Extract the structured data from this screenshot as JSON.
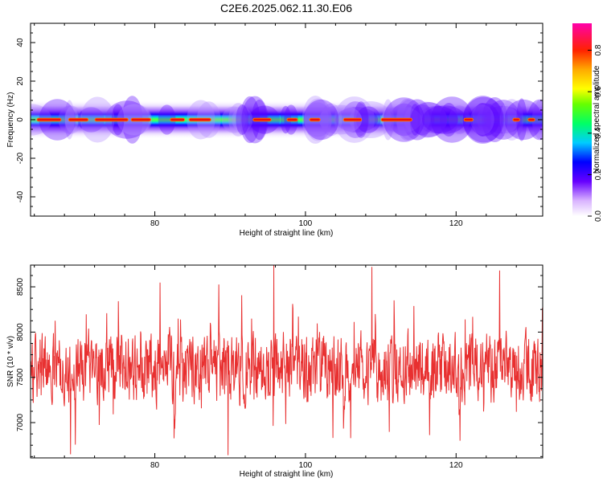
{
  "title": "C2E6.2025.062.11.30.E06",
  "colors": {
    "snr_line": "#e83030",
    "axis": "#000000",
    "background": "#ffffff"
  },
  "chart_data": [
    {
      "type": "heatmap",
      "xlabel": "Height of straight line (km)",
      "ylabel": "Frequency (Hz)",
      "xlim": [
        63.5,
        131.5
      ],
      "ylim": [
        -50,
        50
      ],
      "xticks": [
        80,
        100,
        120
      ],
      "yticks": [
        -40,
        -20,
        0,
        20,
        40
      ],
      "colorbar": {
        "label": "Normalized spectral amplitude",
        "range": [
          0.0,
          0.93
        ],
        "ticks": [
          0.0,
          0.2,
          0.4,
          0.6,
          0.8
        ],
        "colormap": "rainbow (white, violet, blue, cyan, green, yellow, orange, red, pink)"
      },
      "band": {
        "center_frequency_hz": 0,
        "half_width_hz": 5,
        "core_amplitude_range": [
          0.6,
          0.93
        ],
        "segments_x_km": [
          [
            64.3,
            67.6
          ],
          [
            68.5,
            71.2
          ],
          [
            72.0,
            76.5
          ],
          [
            76.8,
            79.5
          ],
          [
            82.0,
            84.0
          ],
          [
            84.5,
            87.5
          ],
          [
            93.0,
            95.5
          ],
          [
            97.5,
            99.0
          ],
          [
            100.5,
            102.0
          ],
          [
            105.0,
            107.5
          ],
          [
            110.0,
            114.2
          ],
          [
            121.0,
            122.3
          ],
          [
            127.5,
            128.5
          ],
          [
            129.5,
            130.5
          ]
        ]
      }
    },
    {
      "type": "line",
      "xlabel": "Height of straight line (km)",
      "ylabel": "SNR (10 * v/v)",
      "xlim": [
        63.5,
        131.5
      ],
      "ylim": [
        6610,
        8740
      ],
      "xticks": [
        80,
        100,
        120
      ],
      "yticks": [
        7000,
        7500,
        8000,
        8500
      ],
      "series": [
        {
          "x_range": [
            63.5,
            131.5
          ],
          "samples": 1500,
          "mean": 7600,
          "typical_range": [
            7100,
            8150
          ],
          "extrema": [
            {
              "x": 95.8,
              "y": 8740
            },
            {
              "x": 120.5,
              "y": 6800
            },
            {
              "x": 125.8,
              "y": 8680
            },
            {
              "x": 89.7,
              "y": 6640
            },
            {
              "x": 68.8,
              "y": 6650
            },
            {
              "x": 108.8,
              "y": 8720
            }
          ]
        }
      ]
    }
  ]
}
